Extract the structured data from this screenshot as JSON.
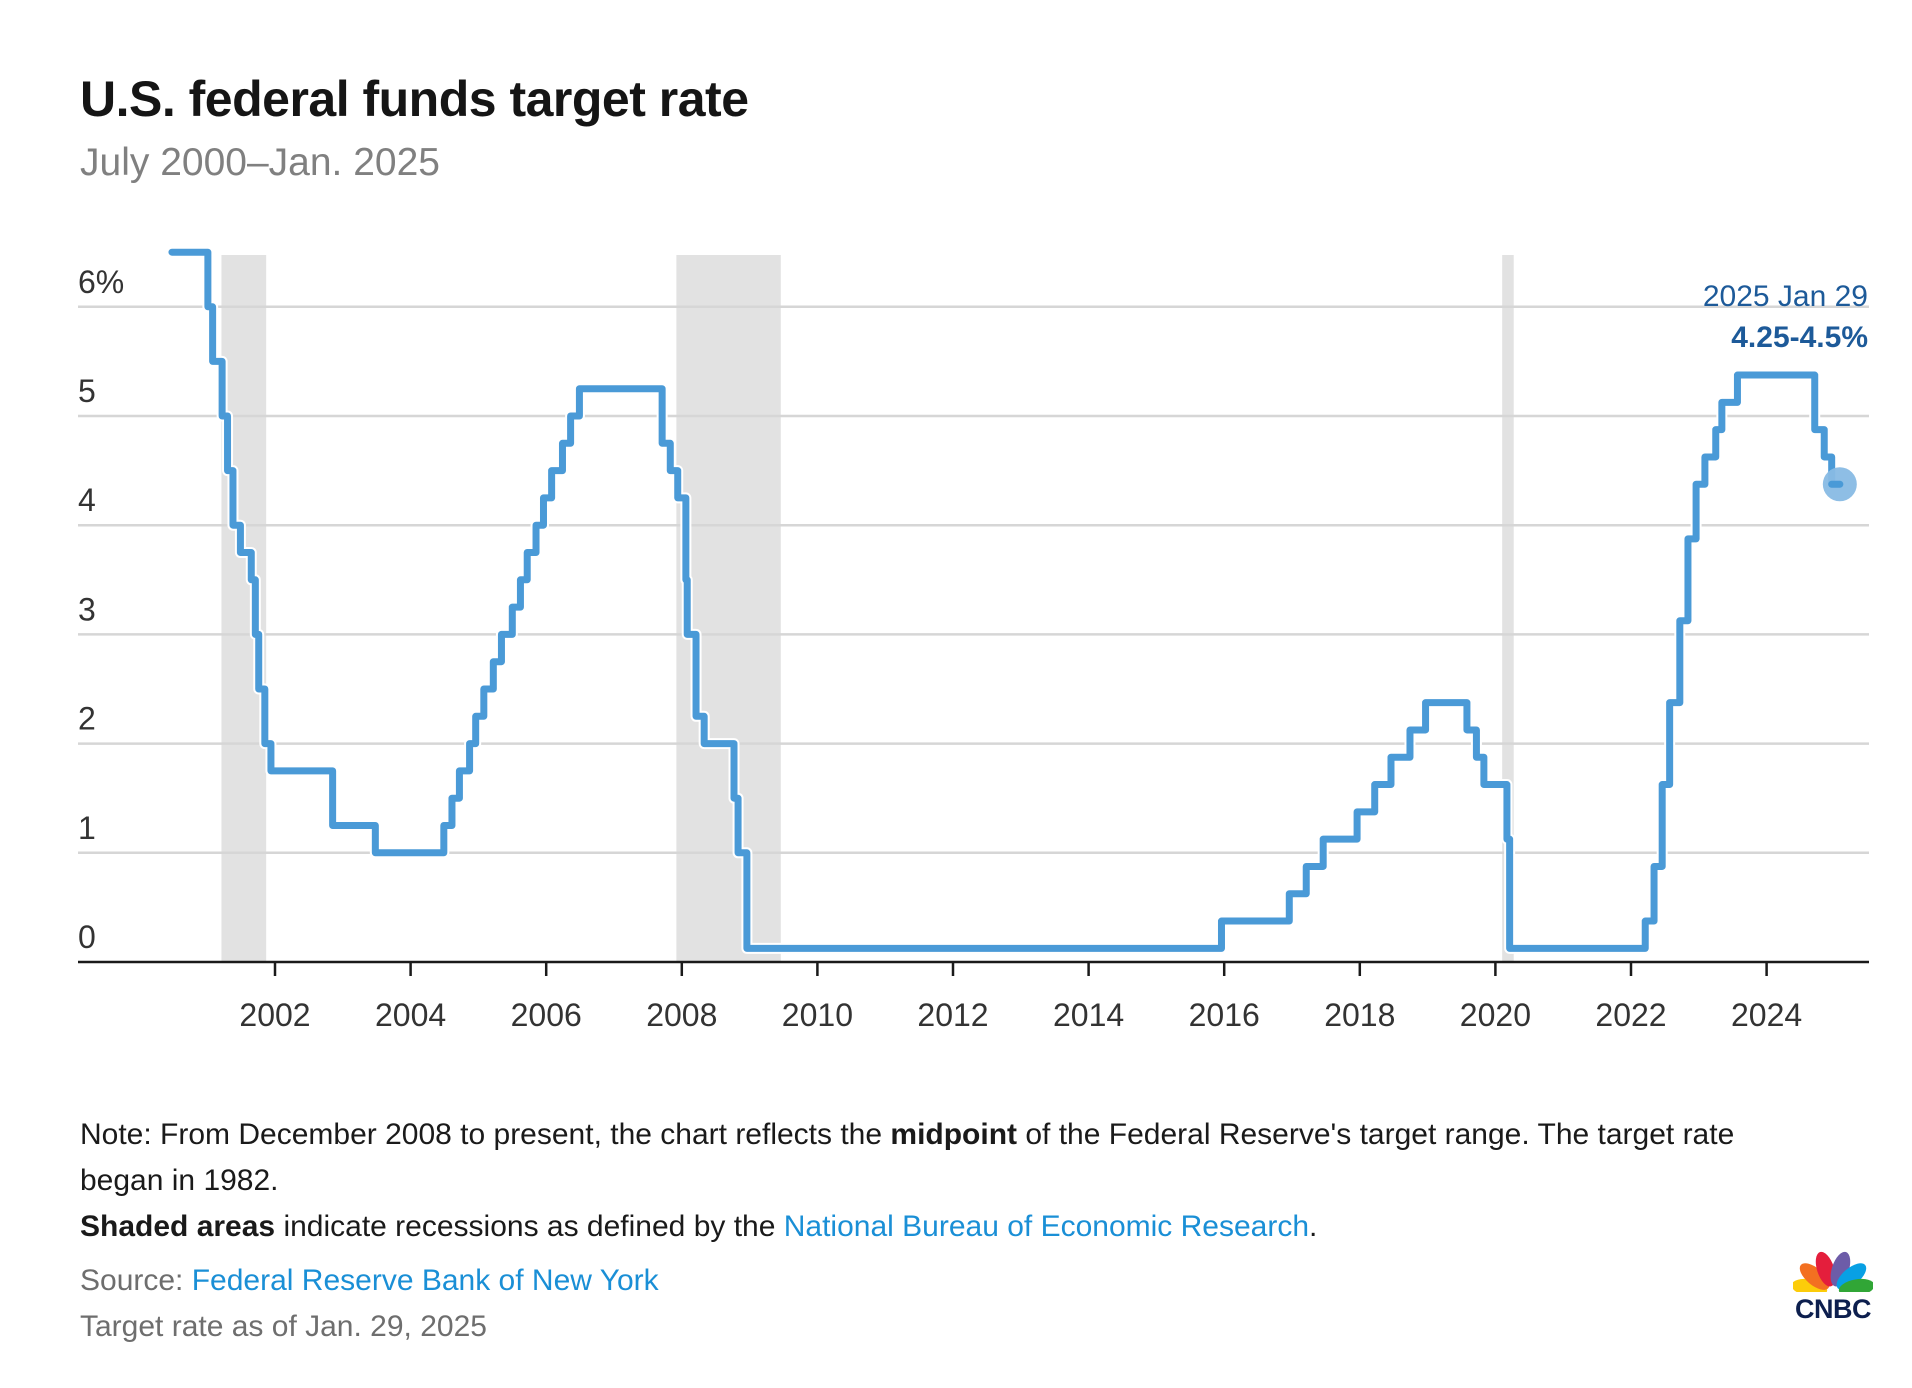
{
  "header": {
    "title": "U.S. federal funds target rate",
    "subtitle": "July 2000–Jan. 2025"
  },
  "chart_data": {
    "type": "line",
    "step": "after",
    "title": "U.S. federal funds target rate",
    "subtitle": "July 2000–Jan. 2025",
    "xlabel": "",
    "ylabel": "",
    "y_unit": "%",
    "xlim": [
      1999.1,
      2025.5
    ],
    "ylim": [
      0,
      6.5
    ],
    "grid": true,
    "y_ticks": [
      {
        "value": 0,
        "label": "0"
      },
      {
        "value": 1,
        "label": "1"
      },
      {
        "value": 2,
        "label": "2"
      },
      {
        "value": 3,
        "label": "3"
      },
      {
        "value": 4,
        "label": "4"
      },
      {
        "value": 5,
        "label": "5"
      },
      {
        "value": 6,
        "label": "6%"
      }
    ],
    "x_ticks": [
      {
        "value": 2002,
        "label": "2002"
      },
      {
        "value": 2004,
        "label": "2004"
      },
      {
        "value": 2006,
        "label": "2006"
      },
      {
        "value": 2008,
        "label": "2008"
      },
      {
        "value": 2010,
        "label": "2010"
      },
      {
        "value": 2012,
        "label": "2012"
      },
      {
        "value": 2014,
        "label": "2014"
      },
      {
        "value": 2016,
        "label": "2016"
      },
      {
        "value": 2018,
        "label": "2018"
      },
      {
        "value": 2020,
        "label": "2020"
      },
      {
        "value": 2022,
        "label": "2022"
      },
      {
        "value": 2024,
        "label": "2024"
      }
    ],
    "recessions": [
      {
        "start": 2001.21,
        "end": 2001.87
      },
      {
        "start": 2007.92,
        "end": 2009.46
      },
      {
        "start": 2020.1,
        "end": 2020.27
      }
    ],
    "series": [
      {
        "name": "Federal funds target rate",
        "color": "#4a9ad7",
        "points": [
          {
            "x": 2000.48,
            "y": 6.5
          },
          {
            "x": 2001.01,
            "y": 6.0
          },
          {
            "x": 2001.08,
            "y": 5.5
          },
          {
            "x": 2001.22,
            "y": 5.0
          },
          {
            "x": 2001.3,
            "y": 4.5
          },
          {
            "x": 2001.38,
            "y": 4.0
          },
          {
            "x": 2001.49,
            "y": 3.75
          },
          {
            "x": 2001.65,
            "y": 3.5
          },
          {
            "x": 2001.71,
            "y": 3.0
          },
          {
            "x": 2001.76,
            "y": 2.5
          },
          {
            "x": 2001.85,
            "y": 2.0
          },
          {
            "x": 2001.94,
            "y": 1.75
          },
          {
            "x": 2002.85,
            "y": 1.25
          },
          {
            "x": 2003.48,
            "y": 1.0
          },
          {
            "x": 2004.49,
            "y": 1.25
          },
          {
            "x": 2004.61,
            "y": 1.5
          },
          {
            "x": 2004.72,
            "y": 1.75
          },
          {
            "x": 2004.87,
            "y": 2.0
          },
          {
            "x": 2004.96,
            "y": 2.25
          },
          {
            "x": 2005.08,
            "y": 2.5
          },
          {
            "x": 2005.22,
            "y": 2.75
          },
          {
            "x": 2005.34,
            "y": 3.0
          },
          {
            "x": 2005.5,
            "y": 3.25
          },
          {
            "x": 2005.62,
            "y": 3.5
          },
          {
            "x": 2005.72,
            "y": 3.75
          },
          {
            "x": 2005.85,
            "y": 4.0
          },
          {
            "x": 2005.96,
            "y": 4.25
          },
          {
            "x": 2006.08,
            "y": 4.5
          },
          {
            "x": 2006.24,
            "y": 4.75
          },
          {
            "x": 2006.36,
            "y": 5.0
          },
          {
            "x": 2006.49,
            "y": 5.25
          },
          {
            "x": 2007.71,
            "y": 4.75
          },
          {
            "x": 2007.83,
            "y": 4.5
          },
          {
            "x": 2007.94,
            "y": 4.25
          },
          {
            "x": 2008.06,
            "y": 3.5
          },
          {
            "x": 2008.08,
            "y": 3.0
          },
          {
            "x": 2008.21,
            "y": 2.25
          },
          {
            "x": 2008.33,
            "y": 2.0
          },
          {
            "x": 2008.77,
            "y": 1.5
          },
          {
            "x": 2008.83,
            "y": 1.0
          },
          {
            "x": 2008.96,
            "y": 0.125
          },
          {
            "x": 2015.96,
            "y": 0.375
          },
          {
            "x": 2016.96,
            "y": 0.625
          },
          {
            "x": 2017.21,
            "y": 0.875
          },
          {
            "x": 2017.46,
            "y": 1.125
          },
          {
            "x": 2017.96,
            "y": 1.375
          },
          {
            "x": 2018.22,
            "y": 1.625
          },
          {
            "x": 2018.46,
            "y": 1.875
          },
          {
            "x": 2018.74,
            "y": 2.125
          },
          {
            "x": 2018.97,
            "y": 2.375
          },
          {
            "x": 2019.58,
            "y": 2.125
          },
          {
            "x": 2019.72,
            "y": 1.875
          },
          {
            "x": 2019.83,
            "y": 1.625
          },
          {
            "x": 2020.17,
            "y": 1.125
          },
          {
            "x": 2020.21,
            "y": 0.125
          },
          {
            "x": 2022.21,
            "y": 0.375
          },
          {
            "x": 2022.34,
            "y": 0.875
          },
          {
            "x": 2022.46,
            "y": 1.625
          },
          {
            "x": 2022.57,
            "y": 2.375
          },
          {
            "x": 2022.72,
            "y": 3.125
          },
          {
            "x": 2022.84,
            "y": 3.875
          },
          {
            "x": 2022.96,
            "y": 4.375
          },
          {
            "x": 2023.09,
            "y": 4.625
          },
          {
            "x": 2023.25,
            "y": 4.875
          },
          {
            "x": 2023.34,
            "y": 5.125
          },
          {
            "x": 2023.57,
            "y": 5.375
          },
          {
            "x": 2024.71,
            "y": 4.875
          },
          {
            "x": 2024.85,
            "y": 4.625
          },
          {
            "x": 2024.96,
            "y": 4.375
          },
          {
            "x": 2025.08,
            "y": 4.375
          }
        ]
      }
    ],
    "annotation": {
      "date_label": "2025 Jan 29",
      "value_label": "4.25-4.5%",
      "x": 2025.08,
      "y": 4.375,
      "color": "#1d5a99",
      "marker_color": "#88bbe4"
    },
    "colors": {
      "line": "#4a9ad7",
      "gridline": "#d6d6d6",
      "recession": "#e2e2e2",
      "axis": "#1a1a1a"
    }
  },
  "footer": {
    "note_prefix": "Note: From December 2008 to present, the chart reflects the ",
    "note_bold": "midpoint",
    "note_suffix": " of the Federal Reserve's target range. The target rate began in 1982.",
    "shaded_bold": "Shaded areas",
    "shaded_text": " indicate recessions as defined by the ",
    "shaded_link": "National Bureau of Economic Research",
    "shaded_end": ".",
    "source_label": "Source: ",
    "source_link": "Federal Reserve Bank of New York",
    "as_of": "Target rate as of Jan. 29, 2025",
    "link_color": "#1a8fd6"
  },
  "logo": {
    "text": "CNBC",
    "icon": "cnbc-peacock-icon",
    "feather_colors": [
      "#fccc0a",
      "#f37021",
      "#e41e3c",
      "#6d5ca8",
      "#08a0e4",
      "#31a636"
    ]
  }
}
